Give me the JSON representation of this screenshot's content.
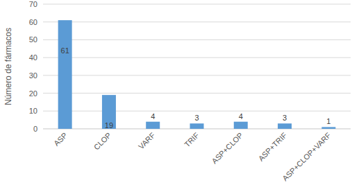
{
  "chart_data": {
    "type": "bar",
    "y_label": "Número de fármacos",
    "categories": [
      "ASP",
      "CLOP",
      "VARF",
      "TRIF",
      "ASP+CLOP",
      "ASP+TRIF",
      "ASP+CLOP+VARF"
    ],
    "values": [
      61,
      19,
      4,
      3,
      4,
      3,
      1
    ],
    "color": "#5b9bd5",
    "ylim": [
      0,
      70
    ],
    "yticks": [
      0,
      10,
      20,
      30,
      40,
      50,
      60,
      70
    ],
    "grid": true,
    "data_labels": true
  }
}
